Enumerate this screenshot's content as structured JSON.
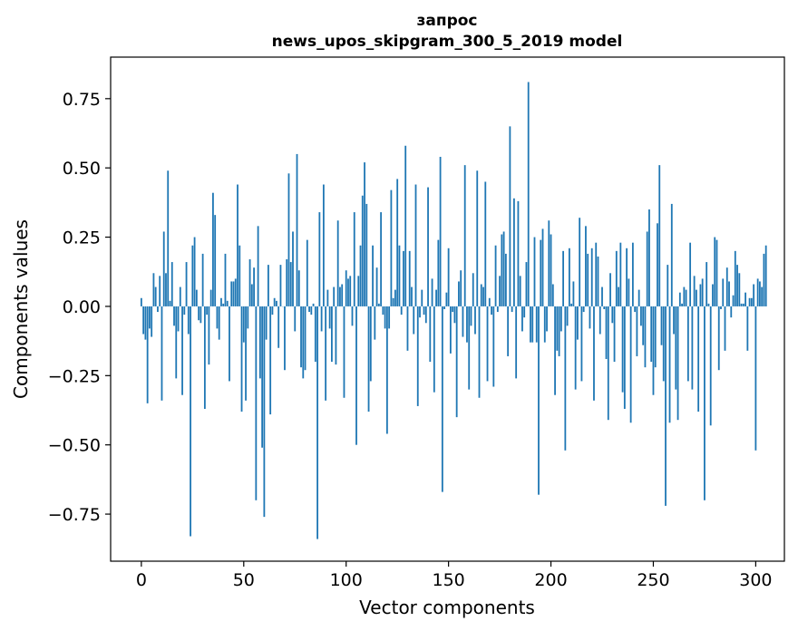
{
  "chart_data": {
    "type": "bar",
    "title": [
      "запрос",
      "news_upos_skipgram_300_5_2019 model"
    ],
    "xlabel": "Vector components",
    "ylabel": "Components values",
    "xlim": [
      -15,
      314
    ],
    "ylim": [
      -0.92,
      0.9
    ],
    "xticks": [
      0,
      50,
      100,
      150,
      200,
      250,
      300
    ],
    "yticks": [
      -0.75,
      -0.5,
      -0.25,
      0.0,
      0.25,
      0.5,
      0.75
    ],
    "ytick_labels": [
      "−0.75",
      "−0.50",
      "−0.25",
      "0.00",
      "0.25",
      "0.50",
      "0.75"
    ],
    "grid": false,
    "bar_color": "#1f77b4",
    "values": [
      0.03,
      -0.1,
      -0.12,
      -0.35,
      -0.08,
      -0.11,
      0.12,
      0.07,
      -0.02,
      0.11,
      -0.34,
      0.27,
      0.12,
      0.49,
      0.02,
      0.16,
      -0.07,
      -0.26,
      -0.09,
      0.07,
      -0.32,
      -0.03,
      0.16,
      -0.1,
      -0.83,
      0.22,
      0.25,
      0.06,
      -0.05,
      -0.06,
      0.19,
      -0.37,
      -0.03,
      -0.21,
      0.06,
      0.41,
      0.33,
      -0.08,
      -0.12,
      0.03,
      0.01,
      0.19,
      0.02,
      -0.27,
      0.09,
      0.09,
      0.1,
      0.44,
      0.22,
      -0.38,
      -0.13,
      -0.34,
      -0.08,
      0.17,
      0.08,
      0.14,
      -0.7,
      0.29,
      -0.26,
      -0.51,
      -0.76,
      -0.12,
      0.15,
      -0.39,
      -0.03,
      0.03,
      0.02,
      -0.15,
      0.15,
      0.0,
      -0.23,
      0.17,
      0.48,
      0.16,
      0.27,
      -0.09,
      0.55,
      0.13,
      -0.22,
      -0.26,
      -0.23,
      0.24,
      -0.02,
      -0.03,
      0.01,
      -0.2,
      -0.84,
      0.34,
      -0.09,
      0.44,
      -0.34,
      0.06,
      -0.08,
      -0.2,
      0.07,
      -0.21,
      0.31,
      0.07,
      0.08,
      -0.33,
      0.13,
      0.1,
      0.11,
      -0.07,
      0.34,
      -0.5,
      0.11,
      0.22,
      0.4,
      0.52,
      0.37,
      -0.38,
      -0.27,
      0.22,
      -0.12,
      0.14,
      0.01,
      0.34,
      -0.03,
      -0.08,
      -0.46,
      -0.08,
      0.42,
      0.03,
      0.06,
      0.46,
      0.22,
      -0.03,
      0.2,
      0.58,
      -0.16,
      0.2,
      0.07,
      -0.1,
      0.44,
      -0.36,
      -0.04,
      0.06,
      -0.03,
      -0.06,
      0.43,
      -0.2,
      0.1,
      -0.31,
      0.06,
      0.24,
      0.54,
      -0.67,
      -0.01,
      0.05,
      0.21,
      -0.17,
      -0.02,
      -0.06,
      -0.4,
      0.09,
      0.13,
      -0.11,
      0.51,
      -0.13,
      -0.3,
      -0.07,
      0.12,
      -0.1,
      0.49,
      -0.33,
      0.08,
      0.07,
      0.45,
      -0.27,
      0.03,
      -0.03,
      -0.29,
      0.22,
      -0.02,
      0.11,
      0.26,
      0.27,
      0.19,
      -0.18,
      0.65,
      -0.02,
      0.39,
      -0.26,
      0.38,
      0.11,
      -0.09,
      -0.04,
      0.16,
      0.81,
      -0.13,
      -0.13,
      0.25,
      -0.13,
      -0.68,
      0.24,
      0.28,
      -0.13,
      -0.09,
      0.31,
      0.26,
      0.08,
      -0.32,
      -0.16,
      -0.18,
      -0.09,
      0.2,
      -0.52,
      -0.07,
      0.21,
      0.01,
      0.09,
      -0.3,
      -0.12,
      0.32,
      -0.27,
      -0.02,
      0.29,
      0.19,
      -0.08,
      0.21,
      -0.34,
      0.23,
      0.18,
      -0.1,
      0.07,
      -0.01,
      -0.19,
      -0.41,
      0.12,
      -0.06,
      -0.2,
      0.2,
      0.07,
      0.23,
      -0.31,
      -0.37,
      0.21,
      0.1,
      -0.42,
      0.23,
      -0.02,
      -0.18,
      0.06,
      -0.07,
      -0.14,
      -0.22,
      0.27,
      0.35,
      -0.2,
      -0.32,
      -0.22,
      0.3,
      0.51,
      -0.14,
      -0.27,
      -0.72,
      0.15,
      -0.42,
      0.37,
      -0.1,
      -0.3,
      -0.41,
      0.05,
      0.01,
      0.07,
      0.06,
      -0.27,
      0.23,
      -0.3,
      0.11,
      0.06,
      -0.38,
      0.08,
      0.1,
      -0.7,
      0.16,
      0.01,
      -0.43,
      0.08,
      0.25,
      0.24,
      -0.23,
      -0.01,
      0.1,
      -0.16,
      0.14,
      0.09,
      -0.04,
      0.04,
      0.2,
      0.15,
      0.12,
      0.01,
      0.01,
      0.05,
      -0.16,
      0.03,
      0.03,
      0.08,
      -0.52,
      0.1,
      0.09,
      0.07,
      0.19,
      0.22
    ]
  }
}
